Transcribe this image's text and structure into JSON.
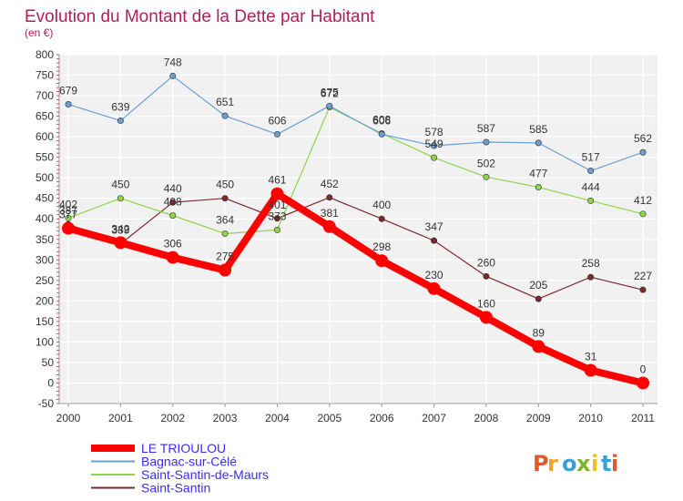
{
  "title": "Evolution du Montant de la Dette par Habitant",
  "unit": "(en €)",
  "brand": [
    "P",
    "r",
    "o",
    "x",
    "i",
    "t",
    "i"
  ],
  "brand_colors": [
    "#e05a2a",
    "#f2a12e",
    "#3aa0d8",
    "#7ab52c",
    "#e8c22a",
    "#3aa0d8",
    "#e05a2a"
  ],
  "chart_data": {
    "type": "line",
    "title": "Evolution du Montant de la Dette par Habitant",
    "ylabel": "(en €)",
    "xlabel": "",
    "x": [
      "2000",
      "2001",
      "2002",
      "2003",
      "2004",
      "2005",
      "2006",
      "2007",
      "2008",
      "2009",
      "2010",
      "2011"
    ],
    "ylim": [
      -50,
      800
    ],
    "yticks": [
      -50,
      0,
      50,
      100,
      150,
      200,
      250,
      300,
      350,
      400,
      450,
      500,
      550,
      600,
      650,
      700,
      750,
      800
    ],
    "grid": true,
    "legend_position": "bottom-left",
    "series": [
      {
        "name": "LE TRIOULOU",
        "color": "#ff0000",
        "values": [
          377,
          342,
          306,
          275,
          461,
          381,
          298,
          230,
          160,
          89,
          31,
          0
        ]
      },
      {
        "name": "Bagnac-sur-Célé",
        "color": "#6b9fd2",
        "values": [
          679,
          639,
          748,
          651,
          606,
          675,
          606,
          578,
          587,
          585,
          517,
          562
        ]
      },
      {
        "name": "Saint-Santin-de-Maurs",
        "color": "#8fd44a",
        "values": [
          402,
          450,
          408,
          364,
          373,
          672,
          608,
          549,
          502,
          477,
          444,
          412
        ]
      },
      {
        "name": "Saint-Santin",
        "color": "#7a2a2a",
        "values": [
          387,
          339,
          440,
          450,
          401,
          452,
          400,
          347,
          260,
          205,
          258,
          227
        ]
      }
    ]
  }
}
